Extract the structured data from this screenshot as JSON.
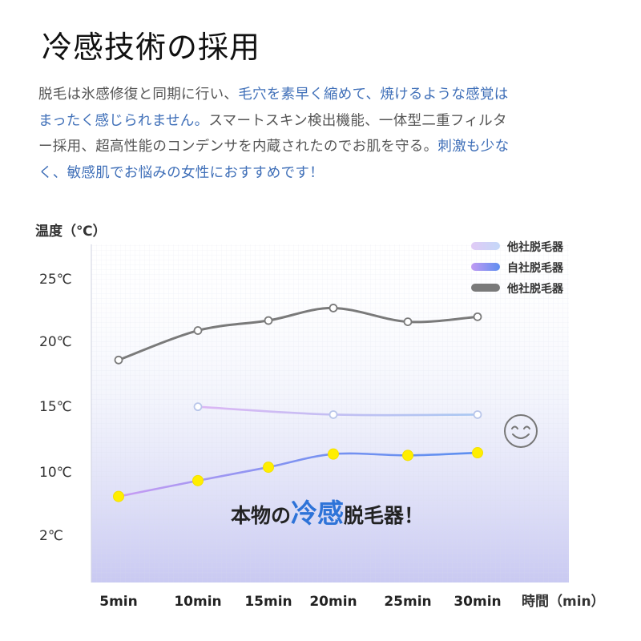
{
  "page": {
    "title": "冷感技術の採用",
    "paragraph": [
      {
        "text": "脱毛は氷感修復と同期に行い、",
        "highlight": false
      },
      {
        "text": "毛穴を素早く縮めて、焼けるような感覚はまったく感じられません。",
        "highlight": true
      },
      {
        "text": "スマートスキン検出機能、一体型二重フィルター採用、超高性能のコンデンサを内蔵されたのでお肌を守る。",
        "highlight": false
      },
      {
        "text": "刺激も少なく、敏感肌でお悩みの女性におすすめです！",
        "highlight": true
      }
    ]
  },
  "chart_data": {
    "type": "line",
    "ylabel": "温度（℃）",
    "xlabel": "時間（min）",
    "categories": [
      "5min",
      "10min",
      "15min",
      "20min",
      "25min",
      "30min"
    ],
    "y_ticks": [
      "25℃",
      "20℃",
      "15℃",
      "10℃",
      "2℃"
    ],
    "series": [
      {
        "name": "他社脱毛器",
        "color": "#7a7a7a",
        "marker": "hollow",
        "x": [
          "5min",
          "10min",
          "15min",
          "20min",
          "25min",
          "30min"
        ],
        "values": [
          18.5,
          20.8,
          21.6,
          22.6,
          21.5,
          21.9
        ]
      },
      {
        "name": "他社脱毛器",
        "color": "#a9c8f2",
        "marker": "hollow",
        "x": [
          "10min",
          "20min",
          "30min"
        ],
        "values": [
          14.9,
          14.3,
          14.3
        ]
      },
      {
        "name": "自社脱毛器",
        "color": "#5c8ff0",
        "marker": "yellow",
        "x": [
          "5min",
          "10min",
          "15min",
          "20min",
          "25min",
          "30min"
        ],
        "values": [
          6.8,
          8.8,
          10.3,
          11.3,
          11.2,
          11.4
        ]
      }
    ],
    "legend": {
      "position": "top-right",
      "items": [
        {
          "label": "他社脱毛器",
          "color": "#c9d8f8"
        },
        {
          "label": "自社脱毛器",
          "color": "#6f8ff5"
        },
        {
          "label": "他社脱毛器",
          "color": "#7a7a7a"
        }
      ]
    },
    "annotation": {
      "pre": "本物の",
      "emph": "冷感",
      "post": "脱毛器！"
    },
    "icon": "smiley-face-icon"
  }
}
